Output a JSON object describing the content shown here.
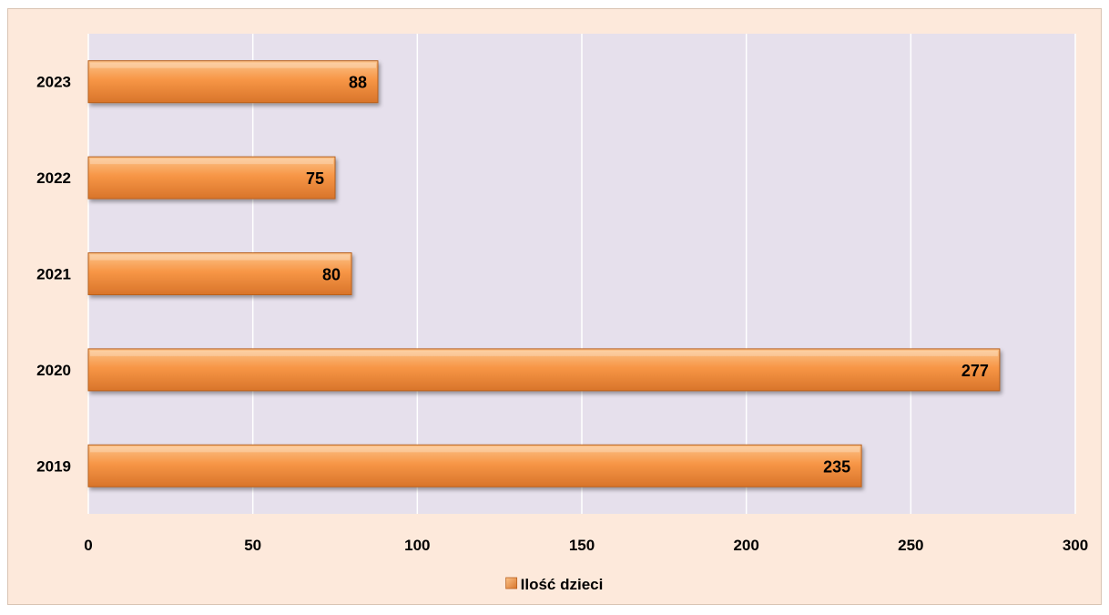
{
  "colors": {
    "chart_background": "#fde9db",
    "plot_background": "#e6e0ec",
    "gridline": "#ffffff",
    "bar_light": "#fbc38a",
    "bar_mid": "#f79646",
    "bar_dark": "#d8742a",
    "bar_edge": "#b8601e"
  },
  "chart_data": {
    "type": "bar",
    "orientation": "horizontal",
    "categories": [
      "2019",
      "2020",
      "2021",
      "2022",
      "2023"
    ],
    "series": [
      {
        "name": "Ilość dzieci",
        "values": [
          235,
          277,
          80,
          75,
          88
        ]
      }
    ],
    "title": "",
    "xlabel": "",
    "ylabel": "",
    "xlim": [
      0,
      300
    ],
    "x_ticks": [
      0,
      50,
      100,
      150,
      200,
      250,
      300
    ],
    "gridlines": "vertical",
    "legend_position": "bottom",
    "data_labels": true
  }
}
